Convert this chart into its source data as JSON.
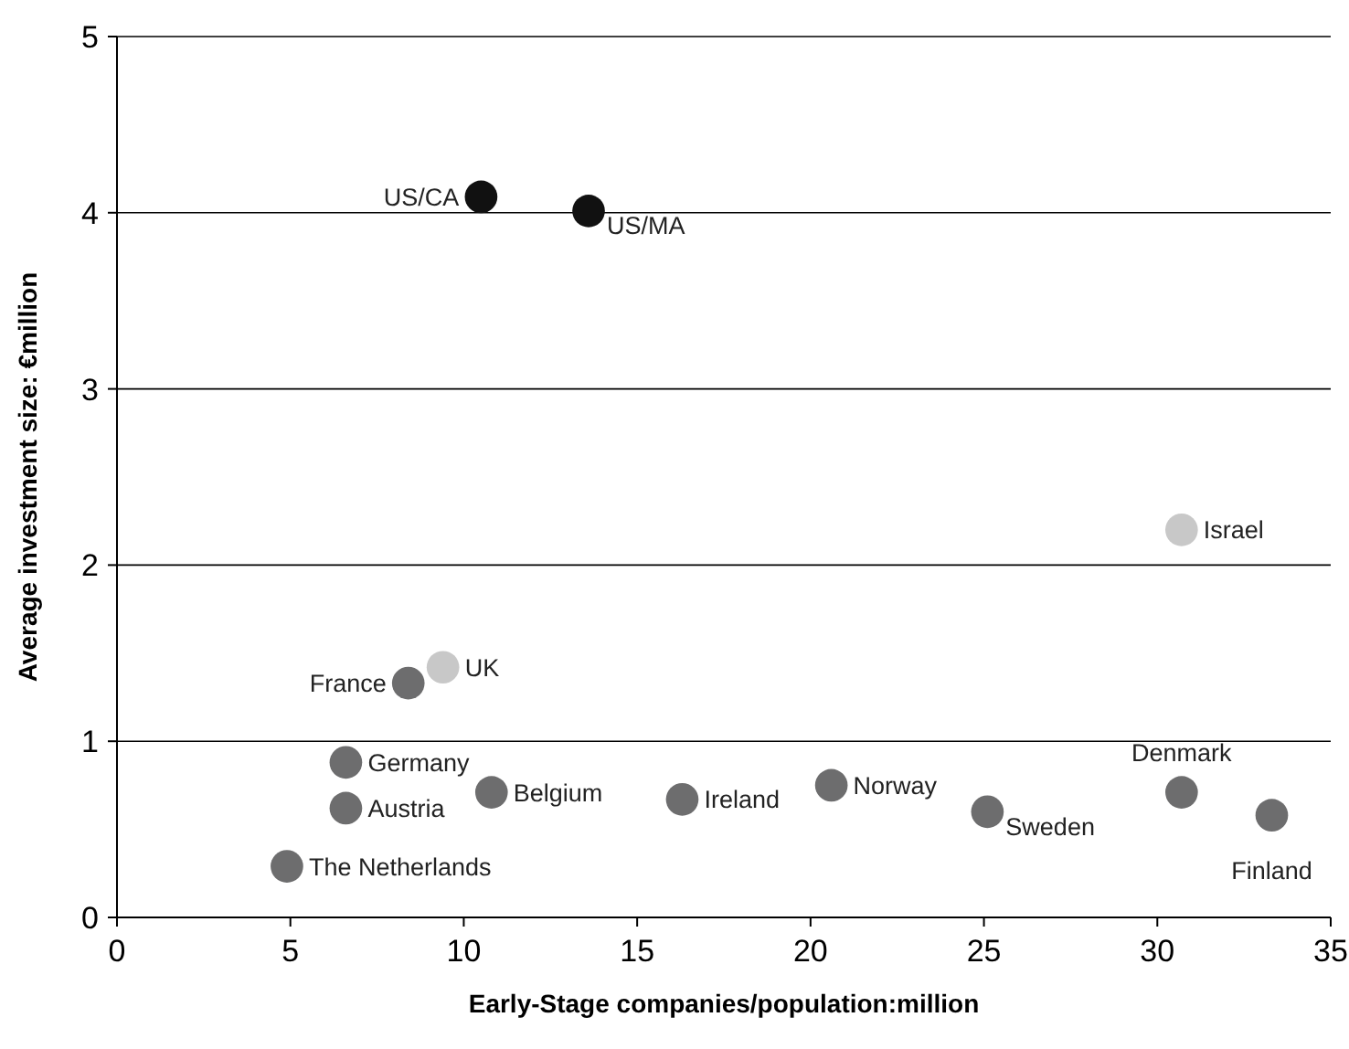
{
  "chart_data": {
    "type": "scatter",
    "xlabel": "Early-Stage companies/population:million",
    "ylabel": "Average investment size: €million",
    "x": [
      10.5,
      13.6,
      30.7,
      9.4,
      8.4,
      6.6,
      6.6,
      10.8,
      16.3,
      20.6,
      25.1,
      30.7,
      33.3,
      4.9
    ],
    "values": [
      4.09,
      4.01,
      2.2,
      1.42,
      1.33,
      0.88,
      0.62,
      0.71,
      0.67,
      0.75,
      0.6,
      0.71,
      0.58,
      0.29
    ],
    "colors": [
      "#111111",
      "#111111",
      "#c8c8c8",
      "#c8c8c8",
      "#6d6d6e",
      "#6d6d6e",
      "#6d6d6e",
      "#6d6d6e",
      "#6d6d6e",
      "#6d6d6e",
      "#6d6d6e",
      "#6d6d6e",
      "#6d6d6e",
      "#6d6d6e"
    ],
    "marker": "circle",
    "grid": "y",
    "xlim": [
      0,
      35
    ],
    "xticks": [
      0,
      5,
      10,
      15,
      20,
      25,
      30,
      35
    ],
    "ylim": [
      0,
      5
    ],
    "yticks": [
      0,
      1,
      2,
      3,
      4,
      5
    ],
    "annotations": [
      {
        "text": "US/CA",
        "x": 10.5,
        "y": 4.09
      },
      {
        "text": "US/MA",
        "x": 13.6,
        "y": 4.01
      },
      {
        "text": "Israel",
        "x": 30.7,
        "y": 2.2
      },
      {
        "text": "UK",
        "x": 9.4,
        "y": 1.42
      },
      {
        "text": "France",
        "x": 8.4,
        "y": 1.33
      },
      {
        "text": "Germany",
        "x": 6.6,
        "y": 0.88
      },
      {
        "text": "Austria",
        "x": 6.6,
        "y": 0.62
      },
      {
        "text": "Belgium",
        "x": 10.8,
        "y": 0.71
      },
      {
        "text": "Ireland",
        "x": 16.3,
        "y": 0.67
      },
      {
        "text": "Norway",
        "x": 20.6,
        "y": 0.75
      },
      {
        "text": "Sweden",
        "x": 25.1,
        "y": 0.6
      },
      {
        "text": "Denmark",
        "x": 30.7,
        "y": 0.71
      },
      {
        "text": "Finland",
        "x": 33.3,
        "y": 0.58
      },
      {
        "text": "The Netherlands",
        "x": 4.9,
        "y": 0.29
      }
    ]
  }
}
